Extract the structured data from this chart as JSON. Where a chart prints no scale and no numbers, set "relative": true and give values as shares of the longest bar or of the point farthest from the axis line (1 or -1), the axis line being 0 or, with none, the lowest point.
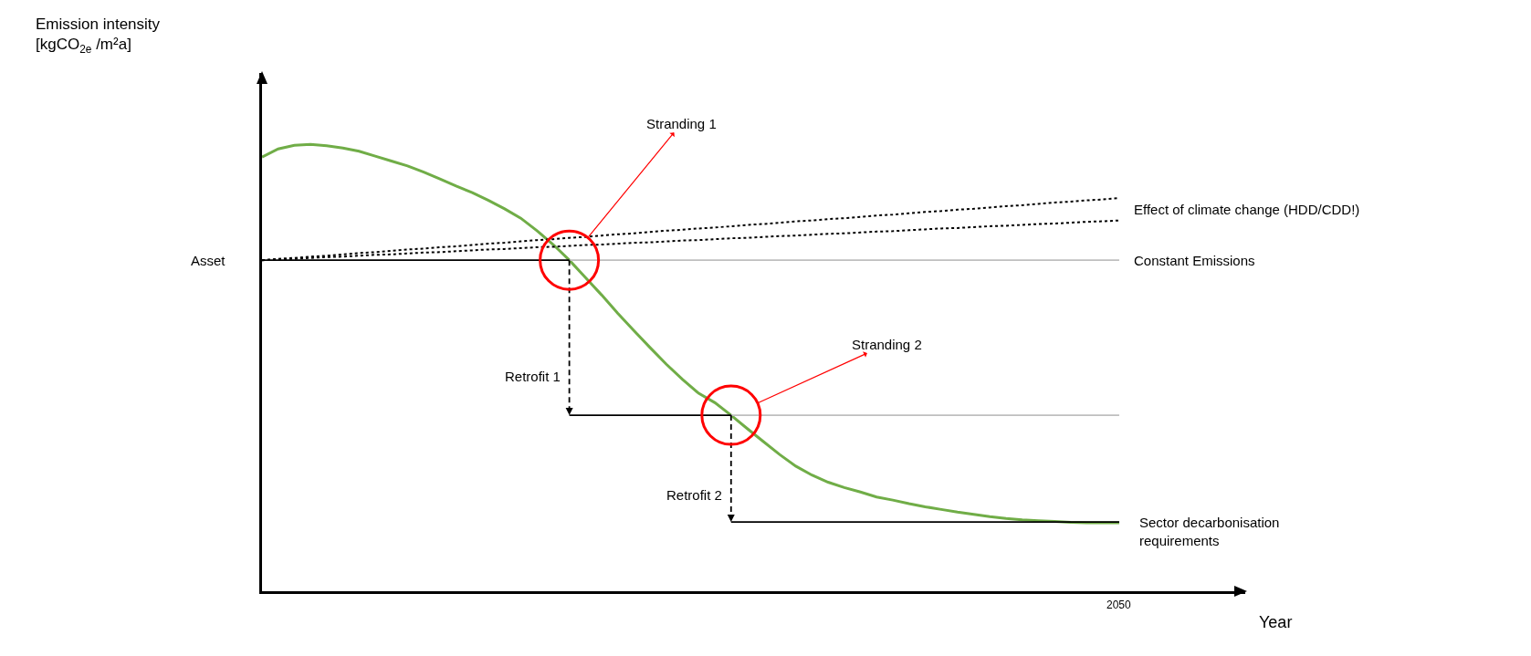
{
  "chart_data": {
    "type": "line",
    "relative": true,
    "categories": [
      null,
      null,
      null,
      null,
      null,
      null,
      null,
      null,
      null,
      null,
      null,
      null,
      null,
      null,
      null,
      null,
      null,
      null,
      null,
      null,
      null,
      null,
      null,
      null,
      null,
      null,
      null,
      null,
      null,
      null,
      null,
      null,
      null,
      null,
      null,
      null,
      null,
      null,
      null,
      null,
      null,
      null,
      null,
      null,
      null,
      null,
      null,
      null,
      null,
      null,
      null,
      null,
      null,
      null
    ],
    "annotations": [
      "Stranding 1",
      "Stranding 2",
      "Retrofit 1",
      "Retrofit 2",
      "Asset",
      "Effect of climate change (HDD/CDD!)",
      "Constant Emissions",
      "Sector decarbonisation\nrequirements",
      "2050",
      "Emission intensity\n[kgCO$_{2e}$ /m²a]",
      "Year"
    ],
    "series": [
      {
        "color": "#bfbfbf",
        "line_style": "solid",
        "values": [
          null,
          null,
          null,
          null,
          null,
          null,
          null,
          null,
          null,
          null,
          null,
          null,
          null,
          null,
          null,
          null,
          null,
          null,
          null,
          0.741,
          0.741,
          0.741,
          0.741,
          0.741,
          0.741,
          0.741,
          0.741,
          0.741,
          0.741,
          0.741,
          0.741,
          0.741,
          0.741,
          0.741,
          0.741,
          0.741,
          0.741,
          0.741,
          0.741,
          0.741,
          0.741,
          0.741,
          0.741,
          0.741,
          0.741,
          0.741,
          0.741,
          0.741,
          0.741,
          0.741,
          0.741,
          0.741,
          0.741,
          0.741
        ]
      },
      {
        "color": "#bfbfbf",
        "line_style": "solid",
        "values": [
          null,
          null,
          null,
          null,
          null,
          null,
          null,
          null,
          null,
          null,
          null,
          null,
          null,
          null,
          null,
          null,
          null,
          null,
          null,
          null,
          null,
          null,
          null,
          null,
          null,
          null,
          null,
          null,
          null,
          0.394,
          0.394,
          0.394,
          0.394,
          0.394,
          0.394,
          0.394,
          0.394,
          0.394,
          0.394,
          0.394,
          0.394,
          0.394,
          0.394,
          0.394,
          0.394,
          0.394,
          0.394,
          0.394,
          0.394,
          0.394,
          0.394,
          0.394,
          0.394,
          0.394
        ]
      },
      {
        "color": "#000000",
        "line_style": "dotted",
        "values": [
          0.741,
          0.744,
          0.746,
          0.749,
          0.751,
          0.754,
          0.757,
          0.759,
          0.762,
          0.765,
          0.767,
          0.77,
          0.772,
          0.775,
          0.778,
          0.78,
          0.783,
          0.786,
          0.788,
          0.791,
          0.793,
          0.796,
          0.799,
          0.801,
          0.804,
          0.807,
          0.809,
          0.812,
          0.814,
          0.817,
          0.82,
          0.822,
          0.825,
          0.828,
          0.83,
          0.833,
          0.835,
          0.838,
          0.841,
          0.843,
          0.846,
          0.849,
          0.851,
          0.854,
          0.856,
          0.859,
          0.862,
          0.864,
          0.867,
          0.87,
          0.872,
          0.875,
          0.877,
          0.88
        ]
      },
      {
        "color": "#000000",
        "line_style": "dotted",
        "values": [
          0.741,
          0.743,
          0.744,
          0.746,
          0.748,
          0.749,
          0.751,
          0.753,
          0.754,
          0.756,
          0.758,
          0.759,
          0.761,
          0.763,
          0.765,
          0.766,
          0.768,
          0.77,
          0.771,
          0.773,
          0.775,
          0.776,
          0.778,
          0.78,
          0.781,
          0.783,
          0.785,
          0.786,
          0.788,
          0.79,
          0.791,
          0.793,
          0.795,
          0.796,
          0.798,
          0.8,
          0.801,
          0.803,
          0.805,
          0.806,
          0.808,
          0.81,
          0.812,
          0.813,
          0.815,
          0.817,
          0.818,
          0.82,
          0.822,
          0.823,
          0.825,
          0.827,
          0.828,
          0.83
        ]
      },
      {
        "color": "#000000",
        "line_style": "solid",
        "values": [
          0.741,
          0.741,
          0.741,
          0.741,
          0.741,
          0.741,
          0.741,
          0.741,
          0.741,
          0.741,
          0.741,
          0.741,
          0.741,
          0.741,
          0.741,
          0.741,
          0.741,
          0.741,
          0.741,
          0.741,
          null,
          null,
          null,
          null,
          null,
          null,
          null,
          null,
          null,
          null,
          null,
          null,
          null,
          null,
          null,
          null,
          null,
          null,
          null,
          null,
          null,
          null,
          null,
          null,
          null,
          null,
          null,
          null,
          null,
          null,
          null,
          null,
          null,
          null
        ]
      },
      {
        "color": "#000000",
        "line_style": "solid",
        "values": [
          null,
          null,
          null,
          null,
          null,
          null,
          null,
          null,
          null,
          null,
          null,
          null,
          null,
          null,
          null,
          null,
          null,
          null,
          null,
          0.394,
          0.394,
          0.394,
          0.394,
          0.394,
          0.394,
          0.394,
          0.394,
          0.394,
          0.394,
          0.394,
          null,
          null,
          null,
          null,
          null,
          null,
          null,
          null,
          null,
          null,
          null,
          null,
          null,
          null,
          null,
          null,
          null,
          null,
          null,
          null,
          null,
          null,
          null,
          null
        ]
      },
      {
        "color": "#000000",
        "line_style": "solid",
        "values": [
          null,
          null,
          null,
          null,
          null,
          null,
          null,
          null,
          null,
          null,
          null,
          null,
          null,
          null,
          null,
          null,
          null,
          null,
          null,
          null,
          null,
          null,
          null,
          null,
          null,
          null,
          null,
          null,
          null,
          0.155,
          0.155,
          0.155,
          0.155,
          0.155,
          0.155,
          0.155,
          0.155,
          0.155,
          0.155,
          0.155,
          0.155,
          0.155,
          0.155,
          0.155,
          0.155,
          0.155,
          0.155,
          0.155,
          0.155,
          0.155,
          0.155,
          0.155,
          0.155,
          0.155
        ]
      },
      {
        "color": "#70ad47",
        "line_style": "solid",
        "values": [
          0.972,
          0.99,
          0.998,
          1.0,
          0.997,
          0.992,
          0.985,
          0.974,
          0.963,
          0.952,
          0.938,
          0.923,
          0.907,
          0.892,
          0.875,
          0.856,
          0.835,
          0.807,
          0.776,
          0.741,
          0.702,
          0.663,
          0.622,
          0.583,
          0.545,
          0.508,
          0.474,
          0.443,
          0.422,
          0.394,
          0.364,
          0.335,
          0.306,
          0.28,
          0.26,
          0.244,
          0.232,
          0.222,
          0.211,
          0.204,
          0.196,
          0.189,
          0.183,
          0.177,
          0.172,
          0.167,
          0.163,
          0.16,
          0.158,
          0.156,
          0.154,
          0.153,
          0.153,
          0.153
        ]
      }
    ]
  }
}
